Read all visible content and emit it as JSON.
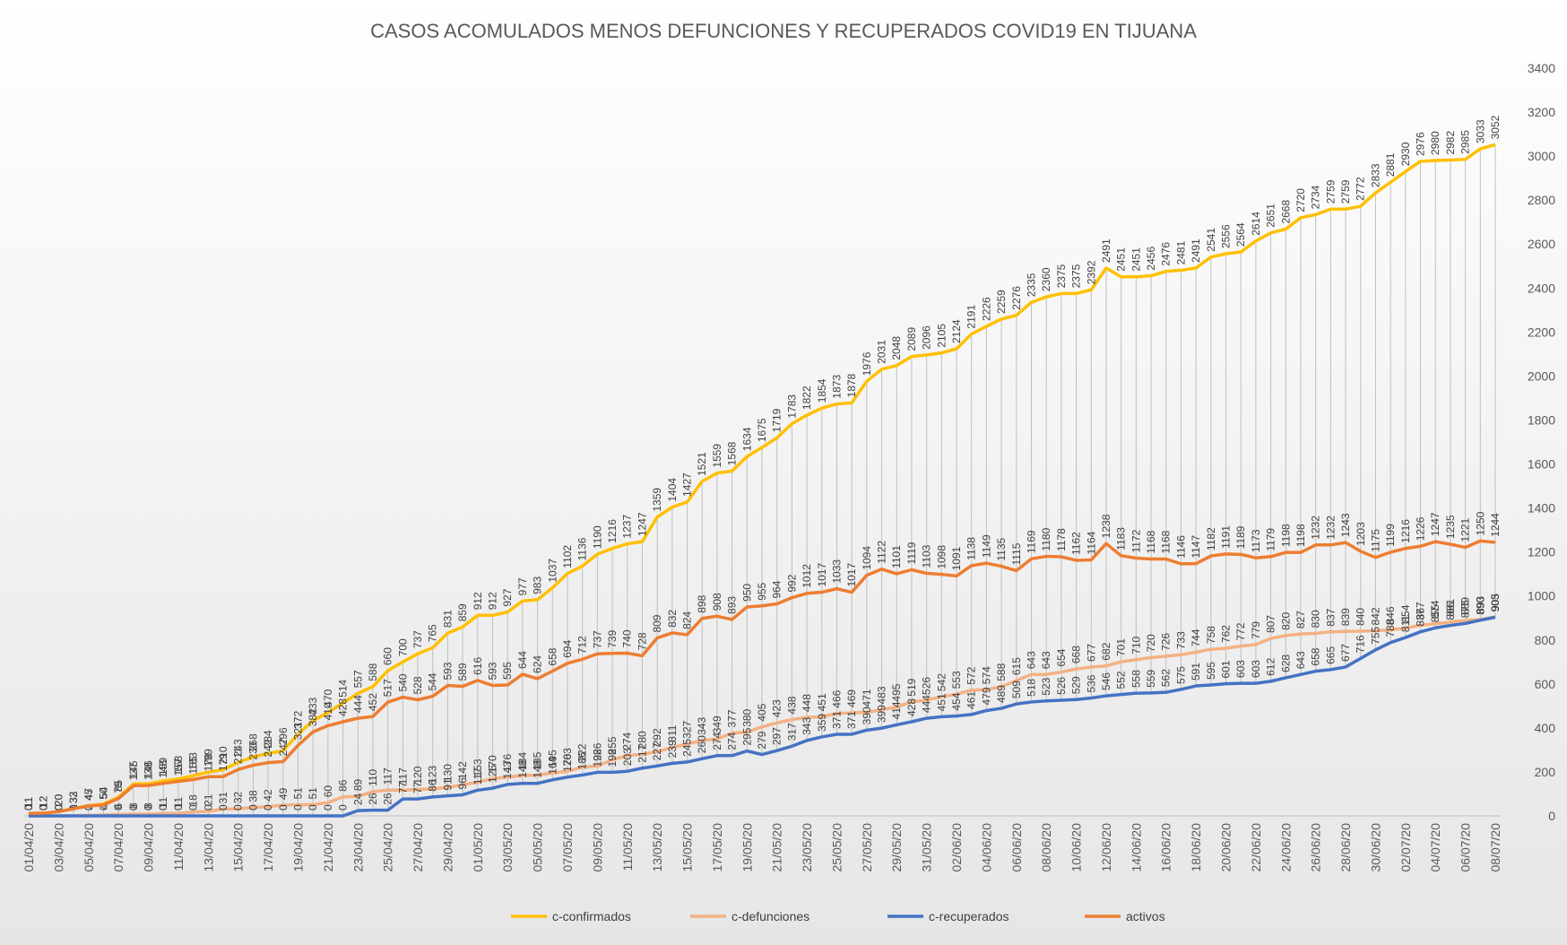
{
  "chart_data": {
    "type": "line",
    "title": "CASOS ACOMULADOS  MENOS DEFUNCIONES  Y RECUPERADOS  COVID19  EN TIJUANA",
    "categories": [
      "01/04/20",
      null,
      "03/04/20",
      null,
      "05/04/20",
      null,
      "07/04/20",
      null,
      "09/04/20",
      null,
      "11/04/20",
      null,
      "13/04/20",
      null,
      "15/04/20",
      null,
      "17/04/20",
      null,
      "19/04/20",
      null,
      "21/04/20",
      null,
      "23/04/20",
      null,
      "25/04/20",
      null,
      "27/04/20",
      null,
      "29/04/20",
      null,
      "01/05/20",
      null,
      "03/05/20",
      null,
      "05/05/20",
      null,
      "07/05/20",
      null,
      "09/05/20",
      null,
      "11/05/20",
      null,
      "13/05/20",
      null,
      "15/05/20",
      null,
      "17/05/20",
      null,
      "19/05/20",
      null,
      "21/05/20",
      null,
      "23/05/20",
      null,
      "25/05/20",
      null,
      "27/05/20",
      null,
      "29/05/20",
      null,
      "31/05/20",
      null,
      "02/06/20",
      null,
      "04/06/20",
      null,
      "06/06/20",
      null,
      "08/06/20",
      null,
      "10/06/20",
      null,
      "12/06/20",
      null,
      "14/06/20",
      null,
      "16/06/20",
      null,
      "18/06/20",
      null,
      "20/06/20",
      null,
      "22/06/20",
      null,
      "24/06/20",
      null,
      "26/06/20",
      null,
      "28/06/20",
      null,
      "30/06/20",
      null,
      "02/07/20",
      null,
      "04/07/20",
      null,
      "06/07/20",
      null,
      "08/07/20"
    ],
    "series": [
      {
        "name": "c-confirmados",
        "color": "#FFC000",
        "values": [
          11,
          12,
          20,
          33,
          47,
          54,
          85,
          145,
          146,
          159,
          168,
          183,
          199,
          210,
          243,
          268,
          284,
          296,
          372,
          433,
          470,
          514,
          557,
          588,
          660,
          700,
          737,
          765,
          831,
          859,
          912,
          912,
          927,
          977,
          983,
          1037,
          1102,
          1136,
          1190,
          1216,
          1237,
          1247,
          1359,
          1404,
          1427,
          1521,
          1559,
          1568,
          1634,
          1675,
          1719,
          1783,
          1822,
          1854,
          1873,
          1878,
          1976,
          2031,
          2048,
          2089,
          2096,
          2105,
          2124,
          2191,
          2226,
          2259,
          2276,
          2335,
          2360,
          2375,
          2375,
          2392,
          2491,
          2451,
          2451,
          2456,
          2476,
          2481,
          2491,
          2541,
          2556,
          2564,
          2614,
          2651,
          2668,
          2720,
          2734,
          2759,
          2759,
          2772,
          2833,
          2881,
          2930,
          2976,
          2980,
          2982,
          2985,
          3033,
          3052
        ]
      },
      {
        "name": "c-defunciones",
        "color": "#F4B183",
        "values": [
          0,
          0,
          0,
          1,
          2,
          4,
          6,
          8,
          8,
          11,
          11,
          18,
          21,
          31,
          32,
          38,
          42,
          49,
          51,
          51,
          60,
          86,
          89,
          110,
          117,
          117,
          120,
          123,
          130,
          142,
          153,
          170,
          176,
          184,
          185,
          195,
          203,
          222,
          226,
          255,
          274,
          280,
          292,
          311,
          327,
          343,
          349,
          377,
          380,
          405,
          423,
          438,
          448,
          451,
          466,
          469,
          471,
          483,
          495,
          519,
          526,
          542,
          553,
          572,
          574,
          588,
          615,
          643,
          643,
          654,
          668,
          677,
          682,
          701,
          710,
          720,
          726,
          733,
          744,
          758,
          762,
          772,
          779,
          807,
          820,
          827,
          830,
          837,
          839,
          840,
          842,
          846,
          854,
          867,
          874,
          881,
          889,
          893,
          905
        ]
      },
      {
        "name": "c-recuperados",
        "color": "#4472C4",
        "values": [
          0,
          0,
          0,
          0,
          0,
          0,
          0,
          0,
          0,
          0,
          0,
          0,
          0,
          0,
          0,
          0,
          0,
          0,
          0,
          0,
          0,
          0,
          24,
          26,
          26,
          77,
          77,
          86,
          91,
          96,
          117,
          126,
          143,
          148,
          148,
          164,
          176,
          186,
          198,
          198,
          203,
          217,
          227,
          239,
          245,
          260,
          274,
          274,
          295,
          279,
          297,
          317,
          343,
          359,
          371,
          371,
          390,
          399,
          414,
          428,
          444,
          451,
          454,
          461,
          479,
          489,
          509,
          518,
          523,
          526,
          529,
          536,
          546,
          552,
          558,
          559,
          562,
          575,
          591,
          595,
          601,
          603,
          603,
          612,
          628,
          643,
          658,
          665,
          677,
          716,
          755,
          788,
          811,
          837,
          855,
          866,
          875,
          890,
          903
        ]
      },
      {
        "name": "activos",
        "color": "#ED7D31",
        "values": [
          11,
          12,
          20,
          32,
          45,
          50,
          79,
          137,
          138,
          148,
          157,
          165,
          178,
          179,
          211,
          230,
          242,
          247,
          321,
          382,
          410,
          428,
          444,
          452,
          517,
          540,
          528,
          544,
          593,
          589,
          616,
          593,
          595,
          644,
          624,
          658,
          694,
          712,
          737,
          739,
          740,
          728,
          809,
          832,
          824,
          898,
          908,
          893,
          950,
          955,
          964,
          992,
          1012,
          1017,
          1033,
          1017,
          1094,
          1122,
          1101,
          1119,
          1103,
          1098,
          1091,
          1138,
          1149,
          1135,
          1115,
          1169,
          1180,
          1178,
          1162,
          1164,
          1238,
          1183,
          1172,
          1168,
          1168,
          1146,
          1147,
          1182,
          1191,
          1189,
          1173,
          1179,
          1198,
          1198,
          1232,
          1232,
          1243,
          1203,
          1175,
          1199,
          1216,
          1226,
          1247,
          1235,
          1221,
          1250,
          1244
        ]
      }
    ],
    "ylim": [
      0,
      3400
    ],
    "yticks": [
      0,
      200,
      400,
      600,
      800,
      1000,
      1200,
      1400,
      1600,
      1800,
      2000,
      2200,
      2400,
      2600,
      2800,
      3000,
      3200,
      3400
    ],
    "legend": "bottom"
  }
}
